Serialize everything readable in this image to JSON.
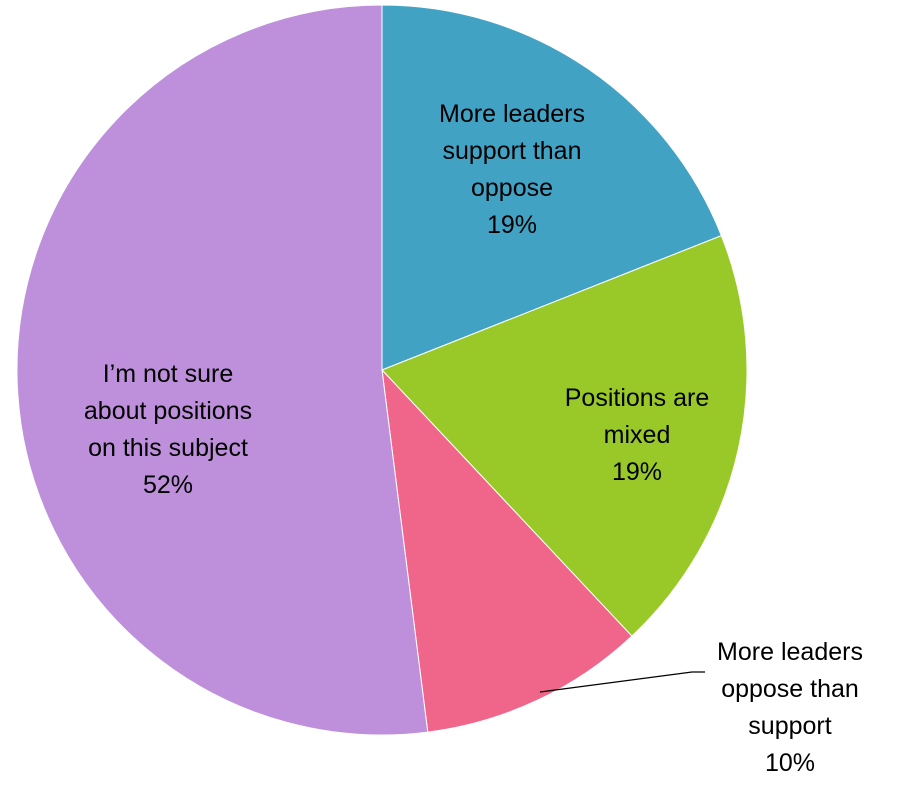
{
  "chart_data": {
    "type": "pie",
    "title": "",
    "start_angle_deg": 0,
    "direction": "clockwise",
    "slices": [
      {
        "lines": [
          "More leaders",
          "support than",
          "oppose"
        ],
        "value": 19,
        "value_label": "19%",
        "color": "#41A2C4"
      },
      {
        "lines": [
          "Positions are",
          "mixed"
        ],
        "value": 19,
        "value_label": "19%",
        "color": "#99C929"
      },
      {
        "lines": [
          "More leaders",
          "oppose than",
          "support"
        ],
        "value": 10,
        "value_label": "10%",
        "color": "#F0668A"
      },
      {
        "lines": [
          "I’m not sure",
          "about positions",
          "on this subject"
        ],
        "value": 52,
        "value_label": "52%",
        "color": "#BE8FDA"
      }
    ]
  }
}
